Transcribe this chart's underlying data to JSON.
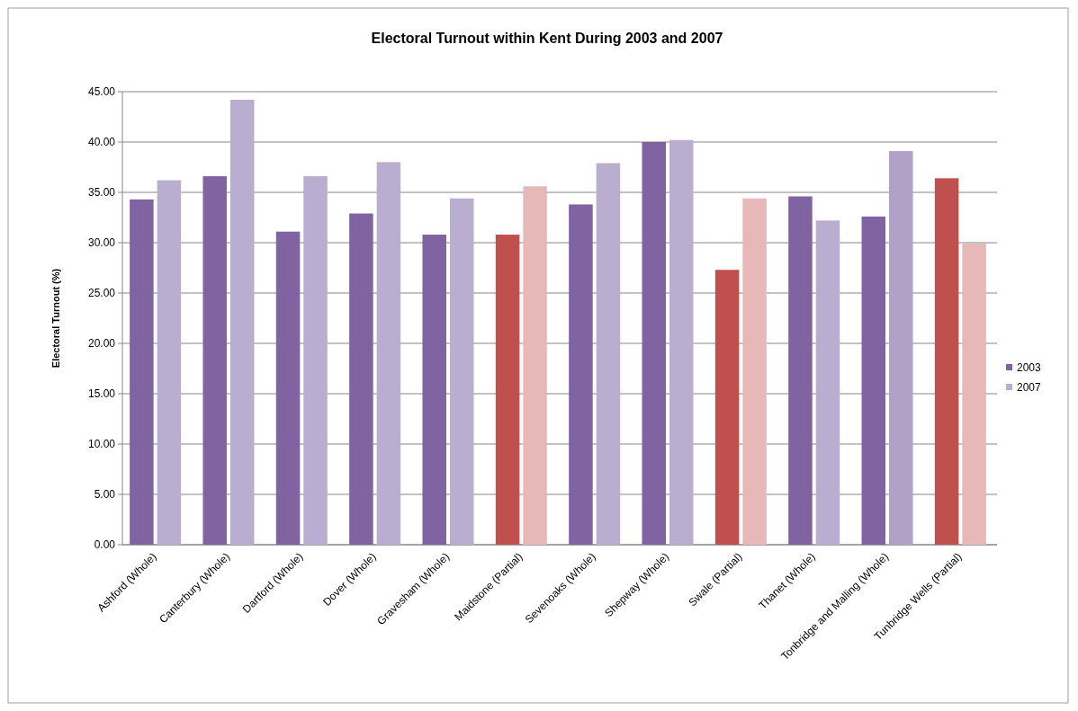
{
  "chart_data": {
    "type": "bar",
    "title": "Electoral Turnout within Kent During 2003 and 2007",
    "ylabel": "Electoral Turnout (%)",
    "categories": [
      "Ashford (Whole)",
      "Canterbury (Whole)",
      "Dartford (Whole)",
      "Dover (Whole)",
      "Gravesham (Whole)",
      "Maidstone (Partial)",
      "Sevenoaks (Whole)",
      "Shepway (Whole)",
      "Swale (Partial)",
      "Thanet (Whole)",
      "Tonbridge and Malling (Whole)",
      "Tunbridge Wells (Partial)"
    ],
    "series": [
      {
        "name": "2003",
        "color": "#8064a2",
        "colors": [
          "#8064a2",
          "#8064a2",
          "#8064a2",
          "#8064a2",
          "#8064a2",
          "#c0504d",
          "#8064a2",
          "#8064a2",
          "#c0504d",
          "#8064a2",
          "#8064a2",
          "#c0504d"
        ],
        "values": [
          34.3,
          36.6,
          31.1,
          32.9,
          30.8,
          30.8,
          33.8,
          40.0,
          27.3,
          34.6,
          32.6,
          36.4
        ]
      },
      {
        "name": "2007",
        "color": "#b9aed0",
        "colors": [
          "#b9aed0",
          "#b9aed0",
          "#b9aed0",
          "#b9aed0",
          "#b9aed0",
          "#e6b9b8",
          "#b9aed0",
          "#b9aed0",
          "#e6b9b8",
          "#b9aed0",
          "#b1a0c7",
          "#e6b9b8"
        ],
        "values": [
          36.2,
          44.2,
          36.6,
          38.0,
          34.4,
          35.6,
          37.9,
          40.2,
          34.4,
          32.2,
          39.1,
          29.9
        ]
      }
    ],
    "ylim": [
      0,
      45
    ],
    "yticks": [
      {
        "value": 0,
        "label": "0.00"
      },
      {
        "value": 5,
        "label": "5.00"
      },
      {
        "value": 10,
        "label": "10.00"
      },
      {
        "value": 15,
        "label": "15.00"
      },
      {
        "value": 20,
        "label": "20.00"
      },
      {
        "value": 25,
        "label": "25.00"
      },
      {
        "value": 30,
        "label": "30.00"
      },
      {
        "value": 35,
        "label": "35.00"
      },
      {
        "value": 40,
        "label": "40.00"
      },
      {
        "value": 45,
        "label": "45.00"
      }
    ],
    "grid": "y",
    "legend": "right"
  }
}
